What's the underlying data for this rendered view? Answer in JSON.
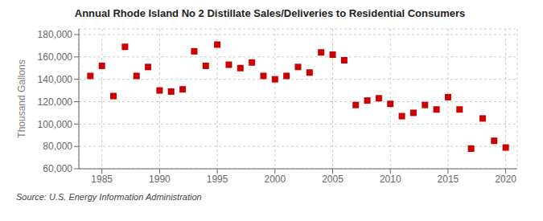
{
  "chart_data": {
    "type": "scatter",
    "title": "Annual Rhode Island No 2 Distillate Sales/Deliveries to Residential Consumers",
    "ylabel": "Thousand Gallons",
    "annotations": [
      "Source: U.S. Energy Information Administration"
    ],
    "x": [
      1984,
      1985,
      1986,
      1987,
      1988,
      1989,
      1990,
      1991,
      1992,
      1993,
      1994,
      1995,
      1996,
      1997,
      1998,
      1999,
      2000,
      2001,
      2002,
      2003,
      2004,
      2005,
      2006,
      2007,
      2008,
      2009,
      2010,
      2011,
      2012,
      2013,
      2014,
      2015,
      2016,
      2017,
      2018,
      2019,
      2020
    ],
    "values": [
      143000,
      152000,
      125000,
      169000,
      143000,
      151000,
      130000,
      129000,
      131000,
      165000,
      152000,
      171000,
      153000,
      150000,
      155000,
      143000,
      140000,
      143000,
      151000,
      146000,
      164000,
      162000,
      157000,
      117000,
      121000,
      123000,
      118000,
      107000,
      110000,
      117000,
      113000,
      124000,
      113000,
      78000,
      105000,
      85000,
      79000
    ],
    "color": "#cc0000",
    "marker": "square",
    "xlim": [
      1983,
      2021
    ],
    "ylim": [
      60000,
      185000
    ],
    "xticks": [
      1985,
      1990,
      1995,
      2000,
      2005,
      2010,
      2015,
      2020
    ],
    "yticks": [
      {
        "value": 60000,
        "label": "60,000"
      },
      {
        "value": 80000,
        "label": "80,000"
      },
      {
        "value": 100000,
        "label": "100,000"
      },
      {
        "value": 120000,
        "label": "120,000"
      },
      {
        "value": 140000,
        "label": "140,000"
      },
      {
        "value": 160000,
        "label": "160,000"
      },
      {
        "value": 180000,
        "label": "180,000"
      }
    ],
    "grid": true
  }
}
